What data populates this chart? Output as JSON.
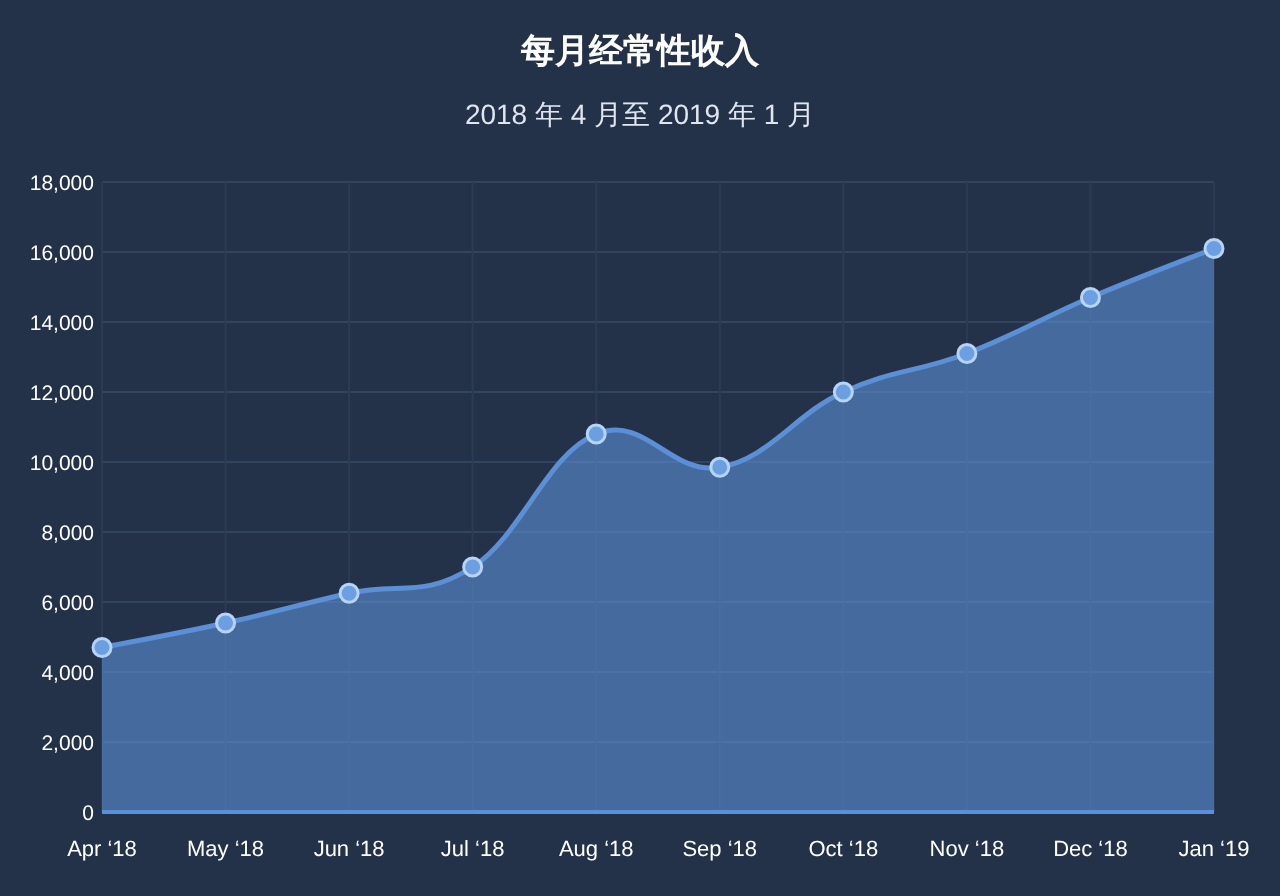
{
  "chart_data": {
    "type": "area",
    "title": "每月经常性收入",
    "subtitle": "2018 年 4 月至 2019 年 1 月",
    "categories": [
      "Apr ‘18",
      "May ‘18",
      "Jun ‘18",
      "Jul ‘18",
      "Aug ‘18",
      "Sep ‘18",
      "Oct ‘18",
      "Nov ‘18",
      "Dec ‘18",
      "Jan ‘19"
    ],
    "series": [
      {
        "color": "#5b8fd6",
        "values": [
          4700,
          5400,
          6250,
          7000,
          10800,
          9850,
          12000,
          13100,
          14700,
          16100
        ]
      }
    ],
    "ylim": [
      0,
      18000
    ],
    "yticks": [
      {
        "value": 0,
        "label": "0"
      },
      {
        "value": 2000,
        "label": "2,000"
      },
      {
        "value": 4000,
        "label": "4,000"
      },
      {
        "value": 6000,
        "label": "6,000"
      },
      {
        "value": 8000,
        "label": "8,000"
      },
      {
        "value": 10000,
        "label": "10,000"
      },
      {
        "value": 12000,
        "label": "12,000"
      },
      {
        "value": 14000,
        "label": "14,000"
      },
      {
        "value": 16000,
        "label": "16,000"
      },
      {
        "value": 18000,
        "label": "18,000"
      }
    ],
    "grid": true,
    "marker": "circle"
  }
}
